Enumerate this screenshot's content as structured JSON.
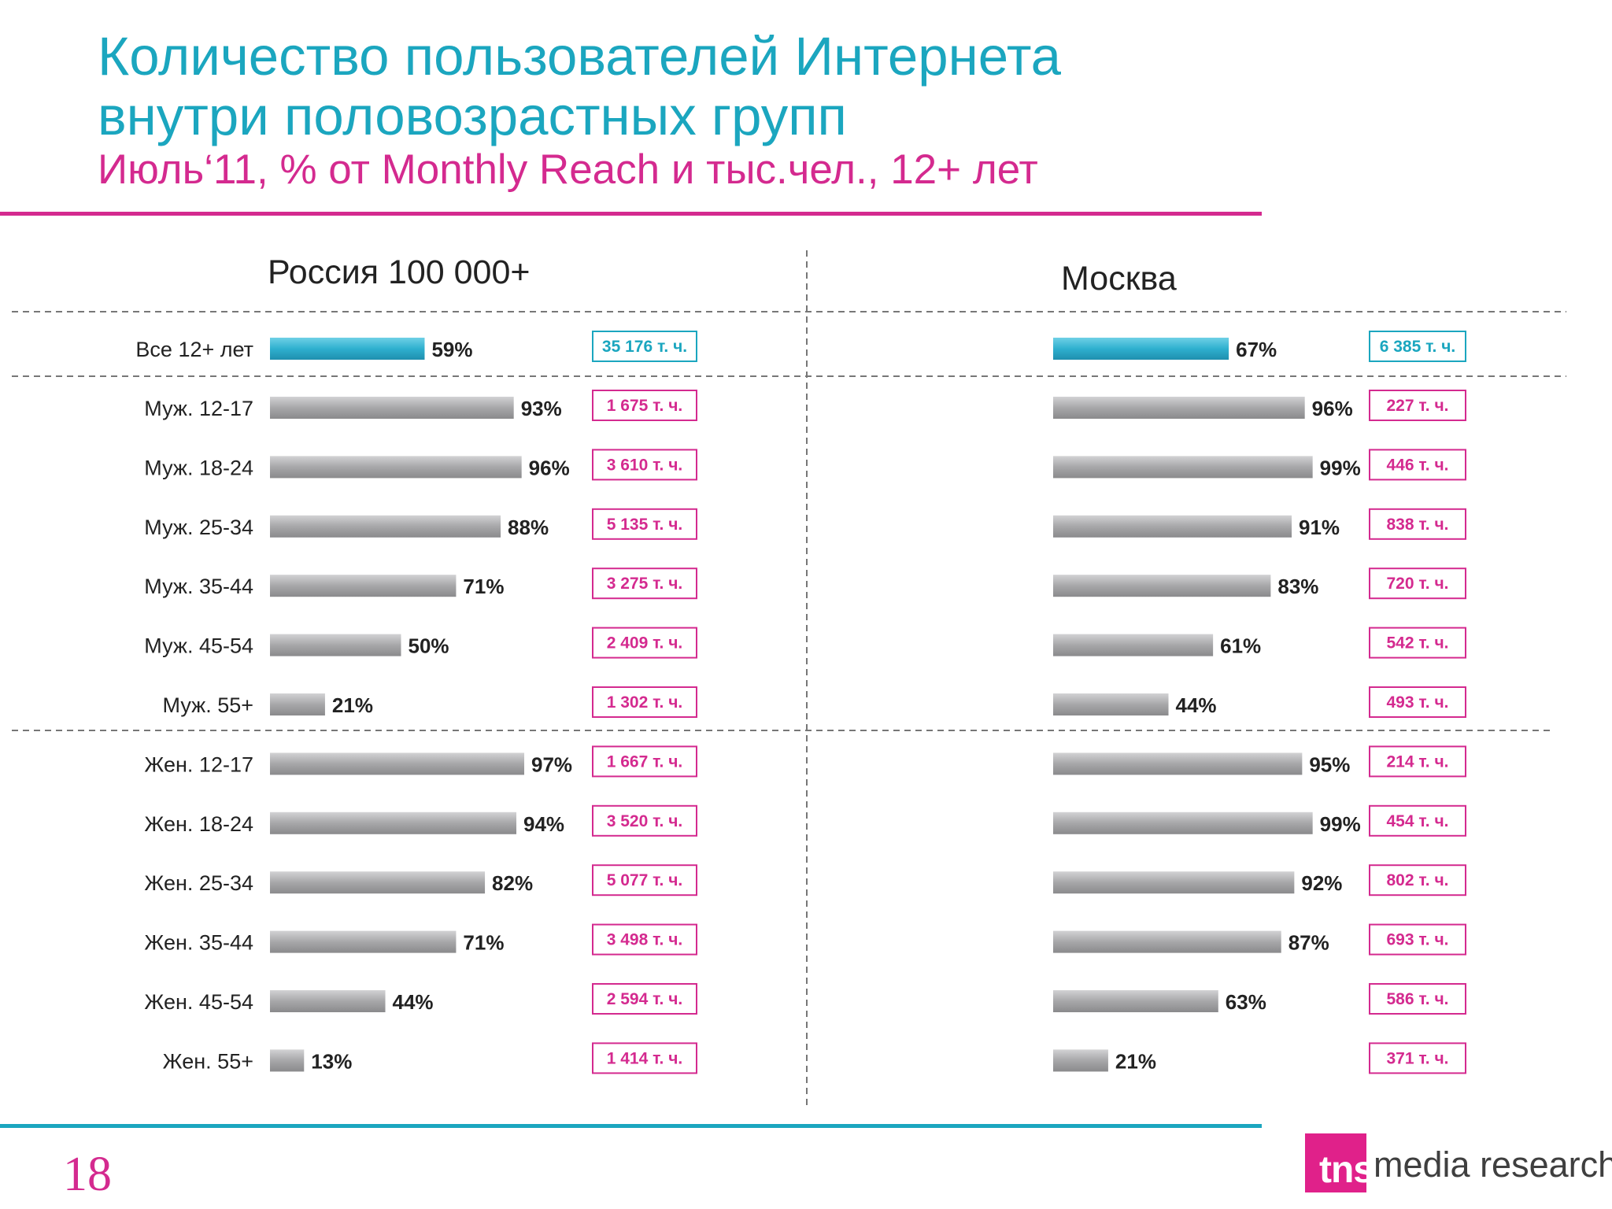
{
  "header": {
    "title_line1": "Количество пользователей Интернета",
    "title_line2": "внутри половозрастных групп",
    "subtitle": "Июль‘11, % от Monthly Reach и тыс.чел., 12+ лет"
  },
  "page_number": "18",
  "logo": {
    "mark_text": "tns",
    "text": "media research"
  },
  "colors": {
    "title": "#1ba6bf",
    "subtitle": "#d42a8f",
    "accent_bar": "#2fb0cf",
    "group_bar": "#a7a7a9",
    "count_box_total": "#1ba6bf",
    "count_box_group": "#d42a8f"
  },
  "chart_data": {
    "type": "bar",
    "orientation": "horizontal",
    "categories": [
      "Все 12+ лет",
      "Муж. 12-17",
      "Муж. 18-24",
      "Муж. 25-34",
      "Муж. 35-44",
      "Муж. 45-54",
      "Муж. 55+",
      "Жен. 12-17",
      "Жен. 18-24",
      "Жен. 25-34",
      "Жен. 35-44",
      "Жен. 45-54",
      "Жен. 55+"
    ],
    "highlight_index": 0,
    "value_unit": "%",
    "count_unit": "т. ч.",
    "panels": [
      {
        "title": "Россия 100 000+",
        "values": [
          59,
          93,
          96,
          88,
          71,
          50,
          21,
          97,
          94,
          82,
          71,
          44,
          13
        ],
        "value_labels": [
          "59%",
          "93%",
          "96%",
          "88%",
          "71%",
          "50%",
          "21%",
          "97%",
          "94%",
          "82%",
          "71%",
          "44%",
          "13%"
        ],
        "counts": [
          "35 176 т. ч.",
          "1 675 т. ч.",
          "3 610 т. ч.",
          "5 135 т. ч.",
          "3 275 т. ч.",
          "2 409 т. ч.",
          "1 302 т. ч.",
          "1 667 т. ч.",
          "3 520 т. ч.",
          "5 077 т. ч.",
          "3 498 т. ч.",
          "2 594 т. ч.",
          "1 414 т. ч."
        ]
      },
      {
        "title": "Москва",
        "values": [
          67,
          96,
          99,
          91,
          83,
          61,
          44,
          95,
          99,
          92,
          87,
          63,
          21
        ],
        "value_labels": [
          "67%",
          "96%",
          "99%",
          "91%",
          "83%",
          "61%",
          "44%",
          "95%",
          "99%",
          "92%",
          "87%",
          "63%",
          "21%"
        ],
        "counts": [
          "6 385 т. ч.",
          "227 т. ч.",
          "446 т. ч.",
          "838 т. ч.",
          "720 т. ч.",
          "542 т. ч.",
          "493 т. ч.",
          "214 т. ч.",
          "454 т. ч.",
          "802 т. ч.",
          "693 т. ч.",
          "586 т. ч.",
          "371 т. ч."
        ]
      }
    ]
  }
}
